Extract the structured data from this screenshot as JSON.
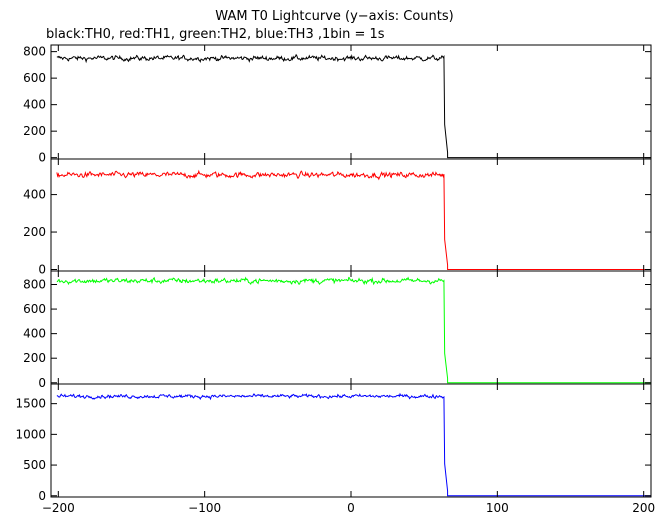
{
  "title": "WAM T0 Lightcurve (y−axis: Counts)",
  "subtitle": "black:TH0, red:TH1, green:TH2, blue:TH3 ,1bin = 1s",
  "chart_data": {
    "type": "line",
    "xlim": [
      -205,
      205
    ],
    "x_ticks": [
      -200,
      -100,
      0,
      100,
      200
    ],
    "x_tick_labels": [
      "−200",
      "−100",
      "0",
      "100",
      "200"
    ],
    "grid": false,
    "panels": [
      {
        "series_label": "TH0",
        "color": "#000000",
        "ylim": [
          -10,
          850
        ],
        "y_ticks": [
          0,
          200,
          400,
          600,
          800
        ],
        "level_before": 750,
        "noise": 25,
        "drop_x": 64,
        "spike_end_x": 66,
        "spike_level": 250,
        "level_after": 0
      },
      {
        "series_label": "TH1",
        "color": "#ff0000",
        "ylim": [
          -8,
          590
        ],
        "y_ticks": [
          0,
          200,
          400
        ],
        "level_before": 505,
        "noise": 20,
        "drop_x": 64,
        "spike_end_x": 66,
        "spike_level": 160,
        "level_after": 0
      },
      {
        "series_label": "TH2",
        "color": "#00ff00",
        "ylim": [
          -10,
          910
        ],
        "y_ticks": [
          0,
          200,
          400,
          600,
          800
        ],
        "level_before": 830,
        "noise": 28,
        "drop_x": 64,
        "spike_end_x": 66,
        "spike_level": 240,
        "level_after": 0
      },
      {
        "series_label": "TH3",
        "color": "#0000ff",
        "ylim": [
          -20,
          1820
        ],
        "y_ticks": [
          0,
          500,
          1000,
          1500
        ],
        "level_before": 1620,
        "noise": 40,
        "drop_x": 64,
        "spike_end_x": 66,
        "spike_level": 520,
        "level_after": 0
      }
    ]
  }
}
